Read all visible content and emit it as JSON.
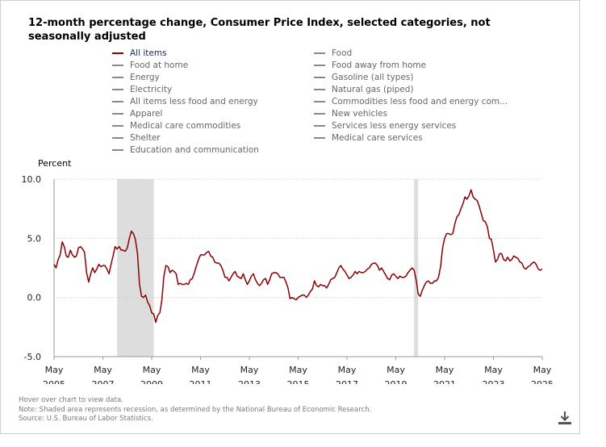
{
  "title": "12-month percentage change, Consumer Price Index, selected categories, not seasonally adjusted",
  "legend": {
    "left": [
      {
        "label": "All items",
        "active": true
      },
      {
        "label": "Food at home",
        "active": false
      },
      {
        "label": "Energy",
        "active": false
      },
      {
        "label": "Electricity",
        "active": false
      },
      {
        "label": "All items less food and energy",
        "active": false
      },
      {
        "label": "Apparel",
        "active": false
      },
      {
        "label": "Medical care commodities",
        "active": false
      },
      {
        "label": "Shelter",
        "active": false
      },
      {
        "label": "Education and communication",
        "active": false
      }
    ],
    "right": [
      {
        "label": "Food",
        "active": false
      },
      {
        "label": "Food away from home",
        "active": false
      },
      {
        "label": "Gasoline (all types)",
        "active": false
      },
      {
        "label": "Natural gas (piped)",
        "active": false
      },
      {
        "label": "Commodities less food and energy com...",
        "active": false
      },
      {
        "label": "New vehicles",
        "active": false
      },
      {
        "label": "Services less energy services",
        "active": false
      },
      {
        "label": "Medical care services",
        "active": false
      }
    ]
  },
  "notes": {
    "hover": "Hover over chart to view data.",
    "note": "Note: Shaded area represents recession, as determined by the National Bureau of Economic Research.",
    "source": "Source: U.S. Bureau of Labor Statistics."
  },
  "download_icon": "download-icon",
  "chart_data": {
    "type": "line",
    "ylabel": "Percent",
    "ylim": [
      -5.0,
      10.0
    ],
    "yticks": [
      "10.0",
      "5.0",
      "0.0",
      "-5.0"
    ],
    "yticks_values": [
      10,
      5,
      0,
      -5
    ],
    "xlim": [
      "May 2005",
      "May 2025"
    ],
    "xticks": [
      {
        "month": "May",
        "year": "2005"
      },
      {
        "month": "May",
        "year": "2007"
      },
      {
        "month": "May",
        "year": "2009"
      },
      {
        "month": "May",
        "year": "2011"
      },
      {
        "month": "May",
        "year": "2013"
      },
      {
        "month": "May",
        "year": "2015"
      },
      {
        "month": "May",
        "year": "2017"
      },
      {
        "month": "May",
        "year": "2019"
      },
      {
        "month": "May",
        "year": "2021"
      },
      {
        "month": "May",
        "year": "2023"
      },
      {
        "month": "May",
        "year": "2025"
      }
    ],
    "grid": true,
    "recessions": [
      {
        "start": "Dec 2007",
        "end": "Jun 2009"
      },
      {
        "start": "Feb 2020",
        "end": "Apr 2020"
      }
    ],
    "series": [
      {
        "name": "All items",
        "color": "#8b0000",
        "points": [
          [
            "May 2005",
            2.8
          ],
          [
            "Jun 2005",
            2.5
          ],
          [
            "Jul 2005",
            3.2
          ],
          [
            "Aug 2005",
            3.6
          ],
          [
            "Sep 2005",
            4.7
          ],
          [
            "Oct 2005",
            4.3
          ],
          [
            "Nov 2005",
            3.5
          ],
          [
            "Dec 2005",
            3.4
          ],
          [
            "Jan 2006",
            4.0
          ],
          [
            "Feb 2006",
            3.6
          ],
          [
            "Mar 2006",
            3.4
          ],
          [
            "Apr 2006",
            3.5
          ],
          [
            "May 2006",
            4.2
          ],
          [
            "Jun 2006",
            4.3
          ],
          [
            "Jul 2006",
            4.1
          ],
          [
            "Aug 2006",
            3.8
          ],
          [
            "Sep 2006",
            2.1
          ],
          [
            "Oct 2006",
            1.3
          ],
          [
            "Nov 2006",
            2.0
          ],
          [
            "Dec 2006",
            2.5
          ],
          [
            "Jan 2007",
            2.1
          ],
          [
            "Feb 2007",
            2.4
          ],
          [
            "Mar 2007",
            2.8
          ],
          [
            "Apr 2007",
            2.6
          ],
          [
            "May 2007",
            2.7
          ],
          [
            "Jun 2007",
            2.7
          ],
          [
            "Jul 2007",
            2.4
          ],
          [
            "Aug 2007",
            2.0
          ],
          [
            "Sep 2007",
            2.8
          ],
          [
            "Oct 2007",
            3.5
          ],
          [
            "Nov 2007",
            4.3
          ],
          [
            "Dec 2007",
            4.1
          ],
          [
            "Jan 2008",
            4.3
          ],
          [
            "Feb 2008",
            4.0
          ],
          [
            "Mar 2008",
            4.0
          ],
          [
            "Apr 2008",
            3.9
          ],
          [
            "May 2008",
            4.2
          ],
          [
            "Jun 2008",
            5.0
          ],
          [
            "Jul 2008",
            5.6
          ],
          [
            "Aug 2008",
            5.4
          ],
          [
            "Sep 2008",
            4.9
          ],
          [
            "Oct 2008",
            3.7
          ],
          [
            "Nov 2008",
            1.1
          ],
          [
            "Dec 2008",
            0.1
          ],
          [
            "Jan 2009",
            0.0
          ],
          [
            "Feb 2009",
            0.2
          ],
          [
            "Mar 2009",
            -0.4
          ],
          [
            "Apr 2009",
            -0.7
          ],
          [
            "May 2009",
            -1.3
          ],
          [
            "Jun 2009",
            -1.4
          ],
          [
            "Jul 2009",
            -2.1
          ],
          [
            "Aug 2009",
            -1.5
          ],
          [
            "Sep 2009",
            -1.3
          ],
          [
            "Oct 2009",
            -0.2
          ],
          [
            "Nov 2009",
            1.8
          ],
          [
            "Dec 2009",
            2.7
          ],
          [
            "Jan 2010",
            2.6
          ],
          [
            "Feb 2010",
            2.1
          ],
          [
            "Mar 2010",
            2.3
          ],
          [
            "Apr 2010",
            2.2
          ],
          [
            "May 2010",
            2.0
          ],
          [
            "Jun 2010",
            1.1
          ],
          [
            "Jul 2010",
            1.2
          ],
          [
            "Aug 2010",
            1.1
          ],
          [
            "Sep 2010",
            1.1
          ],
          [
            "Oct 2010",
            1.2
          ],
          [
            "Nov 2010",
            1.1
          ],
          [
            "Dec 2010",
            1.5
          ],
          [
            "Jan 2011",
            1.6
          ],
          [
            "Feb 2011",
            2.1
          ],
          [
            "Mar 2011",
            2.7
          ],
          [
            "Apr 2011",
            3.2
          ],
          [
            "May 2011",
            3.6
          ],
          [
            "Jun 2011",
            3.6
          ],
          [
            "Jul 2011",
            3.6
          ],
          [
            "Aug 2011",
            3.8
          ],
          [
            "Sep 2011",
            3.9
          ],
          [
            "Oct 2011",
            3.5
          ],
          [
            "Nov 2011",
            3.4
          ],
          [
            "Dec 2011",
            3.0
          ],
          [
            "Jan 2012",
            2.9
          ],
          [
            "Feb 2012",
            2.9
          ],
          [
            "Mar 2012",
            2.7
          ],
          [
            "Apr 2012",
            2.3
          ],
          [
            "May 2012",
            1.7
          ],
          [
            "Jun 2012",
            1.7
          ],
          [
            "Jul 2012",
            1.4
          ],
          [
            "Aug 2012",
            1.7
          ],
          [
            "Sep 2012",
            2.0
          ],
          [
            "Oct 2012",
            2.2
          ],
          [
            "Nov 2012",
            1.8
          ],
          [
            "Dec 2012",
            1.7
          ],
          [
            "Jan 2013",
            1.6
          ],
          [
            "Feb 2013",
            2.0
          ],
          [
            "Mar 2013",
            1.5
          ],
          [
            "Apr 2013",
            1.1
          ],
          [
            "May 2013",
            1.4
          ],
          [
            "Jun 2013",
            1.8
          ],
          [
            "Jul 2013",
            2.0
          ],
          [
            "Aug 2013",
            1.5
          ],
          [
            "Sep 2013",
            1.2
          ],
          [
            "Oct 2013",
            1.0
          ],
          [
            "Nov 2013",
            1.2
          ],
          [
            "Dec 2013",
            1.5
          ],
          [
            "Jan 2014",
            1.6
          ],
          [
            "Feb 2014",
            1.1
          ],
          [
            "Mar 2014",
            1.5
          ],
          [
            "Apr 2014",
            2.0
          ],
          [
            "May 2014",
            2.1
          ],
          [
            "Jun 2014",
            2.1
          ],
          [
            "Jul 2014",
            2.0
          ],
          [
            "Aug 2014",
            1.7
          ],
          [
            "Sep 2014",
            1.7
          ],
          [
            "Oct 2014",
            1.7
          ],
          [
            "Nov 2014",
            1.3
          ],
          [
            "Dec 2014",
            0.8
          ],
          [
            "Jan 2015",
            -0.1
          ],
          [
            "Feb 2015",
            0.0
          ],
          [
            "Mar 2015",
            -0.1
          ],
          [
            "Apr 2015",
            -0.2
          ],
          [
            "May 2015",
            0.0
          ],
          [
            "Jun 2015",
            0.1
          ],
          [
            "Jul 2015",
            0.2
          ],
          [
            "Aug 2015",
            0.2
          ],
          [
            "Sep 2015",
            0.0
          ],
          [
            "Oct 2015",
            0.2
          ],
          [
            "Nov 2015",
            0.5
          ],
          [
            "Dec 2015",
            0.7
          ],
          [
            "Jan 2016",
            1.4
          ],
          [
            "Feb 2016",
            1.0
          ],
          [
            "Mar 2016",
            0.9
          ],
          [
            "Apr 2016",
            1.1
          ],
          [
            "May 2016",
            1.0
          ],
          [
            "Jun 2016",
            1.0
          ],
          [
            "Jul 2016",
            0.8
          ],
          [
            "Aug 2016",
            1.1
          ],
          [
            "Sep 2016",
            1.5
          ],
          [
            "Oct 2016",
            1.6
          ],
          [
            "Nov 2016",
            1.7
          ],
          [
            "Dec 2016",
            2.1
          ],
          [
            "Jan 2017",
            2.5
          ],
          [
            "Feb 2017",
            2.7
          ],
          [
            "Mar 2017",
            2.4
          ],
          [
            "Apr 2017",
            2.2
          ],
          [
            "May 2017",
            1.9
          ],
          [
            "Jun 2017",
            1.6
          ],
          [
            "Jul 2017",
            1.7
          ],
          [
            "Aug 2017",
            1.9
          ],
          [
            "Sep 2017",
            2.2
          ],
          [
            "Oct 2017",
            2.0
          ],
          [
            "Nov 2017",
            2.2
          ],
          [
            "Dec 2017",
            2.1
          ],
          [
            "Jan 2018",
            2.1
          ],
          [
            "Feb 2018",
            2.2
          ],
          [
            "Mar 2018",
            2.4
          ],
          [
            "Apr 2018",
            2.5
          ],
          [
            "May 2018",
            2.8
          ],
          [
            "Jun 2018",
            2.9
          ],
          [
            "Jul 2018",
            2.9
          ],
          [
            "Aug 2018",
            2.7
          ],
          [
            "Sep 2018",
            2.3
          ],
          [
            "Oct 2018",
            2.5
          ],
          [
            "Nov 2018",
            2.2
          ],
          [
            "Dec 2018",
            1.9
          ],
          [
            "Jan 2019",
            1.6
          ],
          [
            "Feb 2019",
            1.5
          ],
          [
            "Mar 2019",
            1.9
          ],
          [
            "Apr 2019",
            2.0
          ],
          [
            "May 2019",
            1.8
          ],
          [
            "Jun 2019",
            1.6
          ],
          [
            "Jul 2019",
            1.8
          ],
          [
            "Aug 2019",
            1.7
          ],
          [
            "Sep 2019",
            1.7
          ],
          [
            "Oct 2019",
            1.8
          ],
          [
            "Nov 2019",
            2.1
          ],
          [
            "Dec 2019",
            2.3
          ],
          [
            "Jan 2020",
            2.5
          ],
          [
            "Feb 2020",
            2.3
          ],
          [
            "Mar 2020",
            1.5
          ],
          [
            "Apr 2020",
            0.3
          ],
          [
            "May 2020",
            0.1
          ],
          [
            "Jun 2020",
            0.6
          ],
          [
            "Jul 2020",
            1.0
          ],
          [
            "Aug 2020",
            1.3
          ],
          [
            "Sep 2020",
            1.4
          ],
          [
            "Oct 2020",
            1.2
          ],
          [
            "Nov 2020",
            1.2
          ],
          [
            "Dec 2020",
            1.4
          ],
          [
            "Jan 2021",
            1.4
          ],
          [
            "Feb 2021",
            1.7
          ],
          [
            "Mar 2021",
            2.6
          ],
          [
            "Apr 2021",
            4.2
          ],
          [
            "May 2021",
            5.0
          ],
          [
            "Jun 2021",
            5.4
          ],
          [
            "Jul 2021",
            5.4
          ],
          [
            "Aug 2021",
            5.3
          ],
          [
            "Sep 2021",
            5.4
          ],
          [
            "Oct 2021",
            6.2
          ],
          [
            "Nov 2021",
            6.8
          ],
          [
            "Dec 2021",
            7.0
          ],
          [
            "Jan 2022",
            7.5
          ],
          [
            "Feb 2022",
            7.9
          ],
          [
            "Mar 2022",
            8.5
          ],
          [
            "Apr 2022",
            8.3
          ],
          [
            "May 2022",
            8.6
          ],
          [
            "Jun 2022",
            9.1
          ],
          [
            "Jul 2022",
            8.5
          ],
          [
            "Aug 2022",
            8.3
          ],
          [
            "Sep 2022",
            8.2
          ],
          [
            "Oct 2022",
            7.7
          ],
          [
            "Nov 2022",
            7.1
          ],
          [
            "Dec 2022",
            6.5
          ],
          [
            "Jan 2023",
            6.4
          ],
          [
            "Feb 2023",
            6.0
          ],
          [
            "Mar 2023",
            5.0
          ],
          [
            "Apr 2023",
            4.9
          ],
          [
            "May 2023",
            4.0
          ],
          [
            "Jun 2023",
            3.0
          ],
          [
            "Jul 2023",
            3.2
          ],
          [
            "Aug 2023",
            3.7
          ],
          [
            "Sep 2023",
            3.7
          ],
          [
            "Oct 2023",
            3.2
          ],
          [
            "Nov 2023",
            3.1
          ],
          [
            "Dec 2023",
            3.4
          ],
          [
            "Jan 2024",
            3.1
          ],
          [
            "Feb 2024",
            3.2
          ],
          [
            "Mar 2024",
            3.5
          ],
          [
            "Apr 2024",
            3.4
          ],
          [
            "May 2024",
            3.3
          ],
          [
            "Jun 2024",
            3.0
          ],
          [
            "Jul 2024",
            2.9
          ],
          [
            "Aug 2024",
            2.5
          ],
          [
            "Sep 2024",
            2.4
          ],
          [
            "Oct 2024",
            2.6
          ],
          [
            "Nov 2024",
            2.7
          ],
          [
            "Dec 2024",
            2.9
          ],
          [
            "Jan 2025",
            3.0
          ],
          [
            "Feb 2025",
            2.8
          ],
          [
            "Mar 2025",
            2.4
          ],
          [
            "Apr 2025",
            2.3
          ],
          [
            "May 2025",
            2.4
          ]
        ]
      }
    ]
  }
}
